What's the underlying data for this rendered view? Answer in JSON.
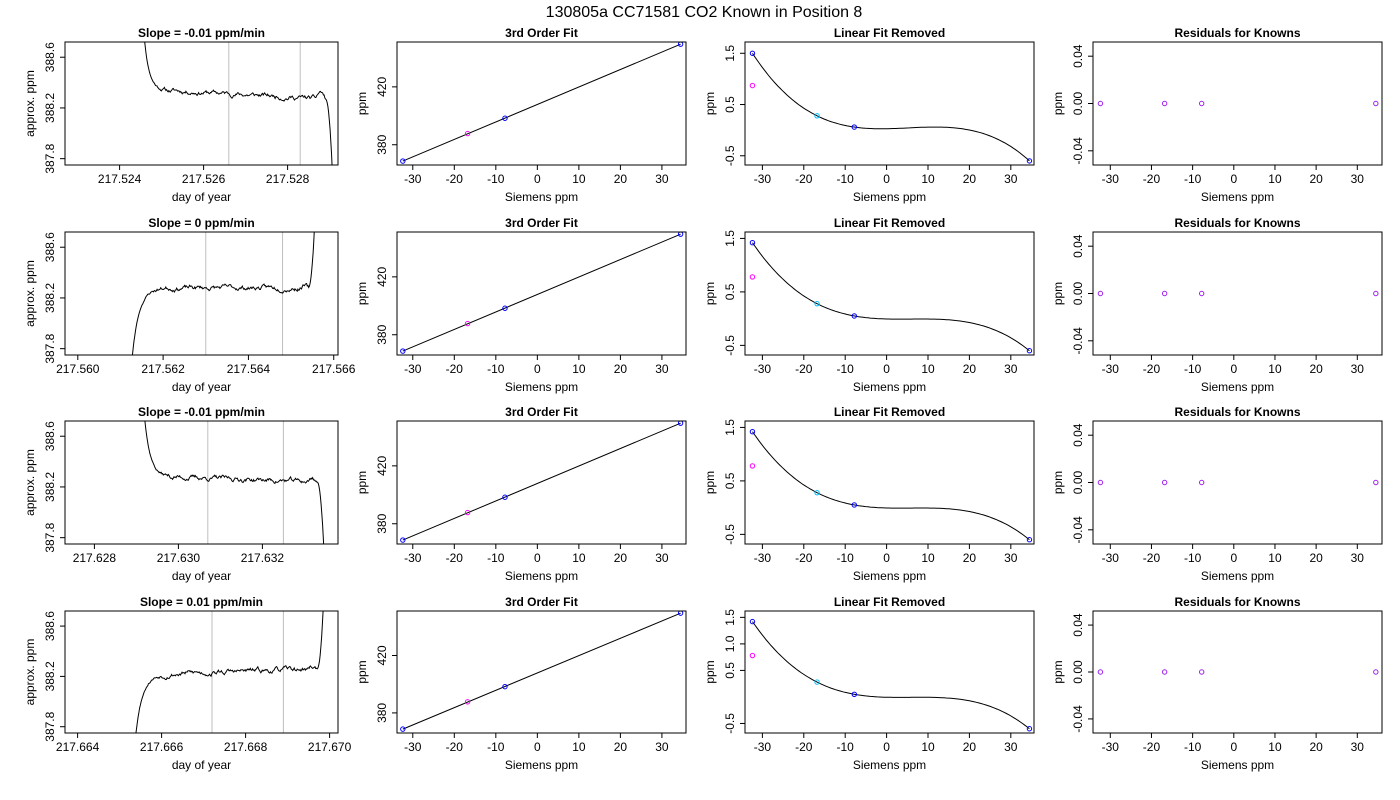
{
  "figure": {
    "title": "130805a      CC71581    CO2 Known in Position  8"
  },
  "colors": {
    "line": "#000000",
    "window_marker": "#bebebe",
    "point_blue": "#0000ff",
    "point_magenta": "#ff00ff",
    "point_cyan": "#00bfff",
    "point_purple": "#a020f0"
  },
  "chart_data": [
    {
      "type": "line",
      "row": 0,
      "col": 0,
      "title": "Slope =  -0.01  ppm/min",
      "xlabel": "day of year",
      "ylabel": "approx. ppm",
      "xlim": [
        217.5227,
        217.5292
      ],
      "ylim": [
        387.75,
        388.72
      ],
      "xticks": [
        217.524,
        217.526,
        217.528
      ],
      "xticklabels": [
        "217.524",
        "217.526",
        "217.528"
      ],
      "yticks": [
        387.8,
        388.2,
        388.6
      ],
      "yticklabels": [
        "387.8",
        "388.2",
        "388.6"
      ],
      "markers": [
        217.5266,
        217.5283
      ],
      "trace": {
        "start": 217.5245,
        "plateau_start": 217.5251,
        "plateau_end": 217.5289,
        "end": 217.5291,
        "start_level": 389.2,
        "level": 388.34,
        "plateau_drift": -0.07,
        "end_level": 387.4,
        "tail_bump": 0.05,
        "noise": 0.012,
        "seed": 11
      }
    },
    {
      "type": "scatter",
      "row": 0,
      "col": 1,
      "title": "3rd Order Fit",
      "xlabel": "Siemens ppm",
      "ylabel": "ppm",
      "xlim": [
        -33.8,
        35.8
      ],
      "ylim": [
        366.0,
        451.0
      ],
      "xticks": [
        -30,
        -20,
        -10,
        0,
        10,
        20,
        30
      ],
      "xticklabels": [
        "-30",
        "-20",
        "-10",
        "0",
        "10",
        "20",
        "30"
      ],
      "yticks": [
        380,
        420
      ],
      "yticklabels": [
        "380",
        "420"
      ],
      "fit_line": [
        [
          -32.4,
          368.7
        ],
        [
          34.5,
          449.5
        ]
      ],
      "points": [
        {
          "x": -32.4,
          "y": 368.7,
          "color": "point_blue"
        },
        {
          "x": -16.8,
          "y": 387.7,
          "color": "point_magenta"
        },
        {
          "x": -7.8,
          "y": 398.3,
          "color": "point_blue"
        },
        {
          "x": 34.5,
          "y": 449.5,
          "color": "point_blue"
        }
      ]
    },
    {
      "type": "scatter",
      "row": 0,
      "col": 2,
      "title": "Linear Fit Removed",
      "xlabel": "Siemens ppm",
      "ylabel": "ppm",
      "xlim": [
        -34.2,
        35.6
      ],
      "ylim": [
        -0.68,
        1.72
      ],
      "xticks": [
        -30,
        -20,
        -10,
        0,
        10,
        20,
        30
      ],
      "xticklabels": [
        "-30",
        "-20",
        "-10",
        "0",
        "10",
        "20",
        "30"
      ],
      "yticks": [
        -0.5,
        0.5,
        1.5
      ],
      "yticklabels": [
        "-0.5",
        "0.5",
        "1.5"
      ],
      "curve": {
        "x0": -32.4,
        "x1": 34.5,
        "coef": [
          0.0048,
          -0.00107,
          -1.1e-06,
          3.7e-06
        ]
      },
      "points": [
        {
          "x": -32.4,
          "y": 1.5,
          "color": "point_blue"
        },
        {
          "x": -32.4,
          "y": 0.87,
          "color": "point_magenta"
        },
        {
          "x": -16.8,
          "y": 0.28,
          "color": "point_cyan"
        },
        {
          "x": -7.8,
          "y": 0.06,
          "color": "point_blue"
        },
        {
          "x": 34.5,
          "y": -0.6,
          "color": "point_blue"
        }
      ]
    },
    {
      "type": "scatter",
      "row": 0,
      "col": 3,
      "title": "Residuals for Knowns",
      "xlabel": "Siemens ppm",
      "ylabel": "ppm",
      "xlim": [
        -34.2,
        36.0
      ],
      "ylim": [
        -0.052,
        0.052
      ],
      "xticks": [
        -30,
        -20,
        -10,
        0,
        10,
        20,
        30
      ],
      "xticklabels": [
        "-30",
        "-20",
        "-10",
        "0",
        "10",
        "20",
        "30"
      ],
      "yticks": [
        -0.04,
        0.0,
        0.04
      ],
      "yticklabels": [
        "-0.04",
        "0.00",
        "0.04"
      ],
      "points": [
        {
          "x": -32.4,
          "y": 0.0,
          "color": "point_purple"
        },
        {
          "x": -16.8,
          "y": 0.0,
          "color": "point_purple"
        },
        {
          "x": -7.8,
          "y": 0.0,
          "color": "point_purple"
        },
        {
          "x": 34.5,
          "y": 0.0,
          "color": "point_purple"
        }
      ]
    },
    {
      "type": "line",
      "row": 1,
      "col": 0,
      "title": "Slope =  0  ppm/min",
      "xlabel": "day of year",
      "ylabel": "approx. ppm",
      "xlim": [
        217.5597,
        217.5661
      ],
      "ylim": [
        387.75,
        388.72
      ],
      "xticks": [
        217.56,
        217.562,
        217.564,
        217.566
      ],
      "xticklabels": [
        "217.560",
        "217.562",
        "217.564",
        "217.566"
      ],
      "yticks": [
        387.8,
        388.2,
        388.6
      ],
      "yticklabels": [
        "387.8",
        "388.2",
        "388.6"
      ],
      "markers": [
        217.563,
        217.5648
      ],
      "trace": {
        "start": 217.5612,
        "plateau_start": 217.562,
        "plateau_end": 217.5654,
        "end": 217.5656,
        "start_level": 387.4,
        "level": 388.28,
        "plateau_drift": 0.0,
        "end_level": 389.2,
        "tail_bump": 0.02,
        "noise": 0.012,
        "seed": 23
      }
    },
    {
      "type": "scatter",
      "row": 1,
      "col": 1,
      "title": "3rd Order Fit",
      "xlabel": "Siemens ppm",
      "ylabel": "ppm",
      "xlim": [
        -33.8,
        35.8
      ],
      "ylim": [
        366.0,
        451.0
      ],
      "xticks": [
        -30,
        -20,
        -10,
        0,
        10,
        20,
        30
      ],
      "xticklabels": [
        "-30",
        "-20",
        "-10",
        "0",
        "10",
        "20",
        "30"
      ],
      "yticks": [
        380,
        420
      ],
      "yticklabels": [
        "380",
        "420"
      ],
      "fit_line": [
        [
          -32.4,
          368.7
        ],
        [
          34.5,
          449.5
        ]
      ],
      "points": [
        {
          "x": -32.4,
          "y": 368.7,
          "color": "point_blue"
        },
        {
          "x": -16.8,
          "y": 387.7,
          "color": "point_magenta"
        },
        {
          "x": -7.8,
          "y": 398.3,
          "color": "point_blue"
        },
        {
          "x": 34.5,
          "y": 449.5,
          "color": "point_blue"
        }
      ]
    },
    {
      "type": "scatter",
      "row": 1,
      "col": 2,
      "title": "Linear Fit Removed",
      "xlabel": "Siemens ppm",
      "ylabel": "ppm",
      "xlim": [
        -34.2,
        35.6
      ],
      "ylim": [
        -0.68,
        1.62
      ],
      "xticks": [
        -30,
        -20,
        -10,
        0,
        10,
        20,
        30
      ],
      "xticklabels": [
        "-30",
        "-20",
        "-10",
        "0",
        "10",
        "20",
        "30"
      ],
      "yticks": [
        -0.5,
        0.5,
        1.5
      ],
      "yticklabels": [
        "-0.5",
        "0.5",
        "1.5"
      ],
      "curve": {
        "x0": -32.4,
        "x1": 34.5,
        "coef": [
          0.0048,
          -0.00107,
          -1.1e-06,
          3.7e-06
        ]
      },
      "points": [
        {
          "x": -32.4,
          "y": 1.42,
          "color": "point_blue"
        },
        {
          "x": -32.4,
          "y": 0.78,
          "color": "point_magenta"
        },
        {
          "x": -16.8,
          "y": 0.28,
          "color": "point_cyan"
        },
        {
          "x": -7.8,
          "y": 0.05,
          "color": "point_blue"
        },
        {
          "x": 34.5,
          "y": -0.6,
          "color": "point_blue"
        }
      ]
    },
    {
      "type": "scatter",
      "row": 1,
      "col": 3,
      "title": "Residuals for Knowns",
      "xlabel": "Siemens ppm",
      "ylabel": "ppm",
      "xlim": [
        -34.2,
        36.0
      ],
      "ylim": [
        -0.052,
        0.052
      ],
      "xticks": [
        -30,
        -20,
        -10,
        0,
        10,
        20,
        30
      ],
      "xticklabels": [
        "-30",
        "-20",
        "-10",
        "0",
        "10",
        "20",
        "30"
      ],
      "yticks": [
        -0.04,
        0.0,
        0.04
      ],
      "yticklabels": [
        "-0.04",
        "0.00",
        "0.04"
      ],
      "points": [
        {
          "x": -32.4,
          "y": 0.0,
          "color": "point_purple"
        },
        {
          "x": -16.8,
          "y": 0.0,
          "color": "point_purple"
        },
        {
          "x": -7.8,
          "y": 0.0,
          "color": "point_purple"
        },
        {
          "x": 34.5,
          "y": 0.0,
          "color": "point_purple"
        }
      ]
    },
    {
      "type": "line",
      "row": 2,
      "col": 0,
      "title": "Slope =  -0.01  ppm/min",
      "xlabel": "day of year",
      "ylabel": "approx. ppm",
      "xlim": [
        217.6273,
        217.6338
      ],
      "ylim": [
        387.75,
        388.72
      ],
      "xticks": [
        217.628,
        217.63,
        217.632
      ],
      "xticklabels": [
        "217.628",
        "217.630",
        "217.632"
      ],
      "yticks": [
        387.8,
        388.2,
        388.6
      ],
      "yticklabels": [
        "387.8",
        "388.2",
        "388.6"
      ],
      "markers": [
        217.6307,
        217.6325
      ],
      "trace": {
        "start": 217.6291,
        "plateau_start": 217.6298,
        "plateau_end": 217.6333,
        "end": 217.6335,
        "start_level": 389.2,
        "level": 388.28,
        "plateau_drift": -0.04,
        "end_level": 387.4,
        "tail_bump": 0.03,
        "noise": 0.012,
        "seed": 37
      }
    },
    {
      "type": "scatter",
      "row": 2,
      "col": 1,
      "title": "3rd Order Fit",
      "xlabel": "Siemens ppm",
      "ylabel": "ppm",
      "xlim": [
        -33.8,
        35.8
      ],
      "ylim": [
        366.0,
        451.0
      ],
      "xticks": [
        -30,
        -20,
        -10,
        0,
        10,
        20,
        30
      ],
      "xticklabels": [
        "-30",
        "-20",
        "-10",
        "0",
        "10",
        "20",
        "30"
      ],
      "yticks": [
        380,
        420
      ],
      "yticklabels": [
        "380",
        "420"
      ],
      "fit_line": [
        [
          -32.4,
          368.7
        ],
        [
          34.5,
          449.5
        ]
      ],
      "points": [
        {
          "x": -32.4,
          "y": 368.7,
          "color": "point_blue"
        },
        {
          "x": -16.8,
          "y": 387.7,
          "color": "point_magenta"
        },
        {
          "x": -7.8,
          "y": 398.3,
          "color": "point_blue"
        },
        {
          "x": 34.5,
          "y": 449.5,
          "color": "point_blue"
        }
      ]
    },
    {
      "type": "scatter",
      "row": 2,
      "col": 2,
      "title": "Linear Fit Removed",
      "xlabel": "Siemens ppm",
      "ylabel": "ppm",
      "xlim": [
        -34.2,
        35.6
      ],
      "ylim": [
        -0.68,
        1.62
      ],
      "xticks": [
        -30,
        -20,
        -10,
        0,
        10,
        20,
        30
      ],
      "xticklabels": [
        "-30",
        "-20",
        "-10",
        "0",
        "10",
        "20",
        "30"
      ],
      "yticks": [
        -0.5,
        0.5,
        1.5
      ],
      "yticklabels": [
        "-0.5",
        "0.5",
        "1.5"
      ],
      "curve": {
        "x0": -32.4,
        "x1": 34.5,
        "coef": [
          0.0048,
          -0.00107,
          -1.1e-06,
          3.7e-06
        ]
      },
      "points": [
        {
          "x": -32.4,
          "y": 1.42,
          "color": "point_blue"
        },
        {
          "x": -32.4,
          "y": 0.78,
          "color": "point_magenta"
        },
        {
          "x": -16.8,
          "y": 0.28,
          "color": "point_cyan"
        },
        {
          "x": -7.8,
          "y": 0.05,
          "color": "point_blue"
        },
        {
          "x": 34.5,
          "y": -0.6,
          "color": "point_blue"
        }
      ]
    },
    {
      "type": "scatter",
      "row": 2,
      "col": 3,
      "title": "Residuals for Knowns",
      "xlabel": "Siemens ppm",
      "ylabel": "ppm",
      "xlim": [
        -34.2,
        36.0
      ],
      "ylim": [
        -0.052,
        0.052
      ],
      "xticks": [
        -30,
        -20,
        -10,
        0,
        10,
        20,
        30
      ],
      "xticklabels": [
        "-30",
        "-20",
        "-10",
        "0",
        "10",
        "20",
        "30"
      ],
      "yticks": [
        -0.04,
        0.0,
        0.04
      ],
      "yticklabels": [
        "-0.04",
        "0.00",
        "0.04"
      ],
      "points": [
        {
          "x": -32.4,
          "y": 0.0,
          "color": "point_purple"
        },
        {
          "x": -16.8,
          "y": 0.0,
          "color": "point_purple"
        },
        {
          "x": -7.8,
          "y": 0.0,
          "color": "point_purple"
        },
        {
          "x": 34.5,
          "y": 0.0,
          "color": "point_purple"
        }
      ]
    },
    {
      "type": "line",
      "row": 3,
      "col": 0,
      "title": "Slope =  0.01  ppm/min",
      "xlabel": "day of year",
      "ylabel": "approx. ppm",
      "xlim": [
        217.6637,
        217.6702
      ],
      "ylim": [
        387.75,
        388.72
      ],
      "xticks": [
        217.664,
        217.666,
        217.668,
        217.67
      ],
      "xticklabels": [
        "217.664",
        "217.666",
        "217.668",
        "217.670"
      ],
      "yticks": [
        387.8,
        388.2,
        388.6
      ],
      "yticklabels": [
        "387.8",
        "388.2",
        "388.6"
      ],
      "markers": [
        217.6672,
        217.6689
      ],
      "trace": {
        "start": 217.6653,
        "plateau_start": 217.6661,
        "plateau_end": 217.6697,
        "end": 217.6699,
        "start_level": 387.4,
        "level": 388.22,
        "plateau_drift": 0.04,
        "end_level": 389.2,
        "tail_bump": 0.02,
        "noise": 0.013,
        "seed": 53
      }
    },
    {
      "type": "scatter",
      "row": 3,
      "col": 1,
      "title": "3rd Order Fit",
      "xlabel": "Siemens ppm",
      "ylabel": "ppm",
      "xlim": [
        -33.8,
        35.8
      ],
      "ylim": [
        366.0,
        451.0
      ],
      "xticks": [
        -30,
        -20,
        -10,
        0,
        10,
        20,
        30
      ],
      "xticklabels": [
        "-30",
        "-20",
        "-10",
        "0",
        "10",
        "20",
        "30"
      ],
      "yticks": [
        380,
        420
      ],
      "yticklabels": [
        "380",
        "420"
      ],
      "fit_line": [
        [
          -32.4,
          368.7
        ],
        [
          34.5,
          449.5
        ]
      ],
      "points": [
        {
          "x": -32.4,
          "y": 368.7,
          "color": "point_blue"
        },
        {
          "x": -16.8,
          "y": 387.7,
          "color": "point_magenta"
        },
        {
          "x": -7.8,
          "y": 398.3,
          "color": "point_blue"
        },
        {
          "x": 34.5,
          "y": 449.5,
          "color": "point_blue"
        }
      ]
    },
    {
      "type": "scatter",
      "row": 3,
      "col": 2,
      "title": "Linear Fit Removed",
      "xlabel": "Siemens ppm",
      "ylabel": "ppm",
      "xlim": [
        -34.2,
        35.6
      ],
      "ylim": [
        -0.68,
        1.62
      ],
      "xticks": [
        -30,
        -20,
        -10,
        0,
        10,
        20,
        30
      ],
      "xticklabels": [
        "-30",
        "-20",
        "-10",
        "0",
        "10",
        "20",
        "30"
      ],
      "yticks": [
        -0.5,
        0.5,
        1.0,
        1.5
      ],
      "yticklabels": [
        "-0.5",
        "0.5",
        "1.0",
        "1.5"
      ],
      "curve": {
        "x0": -32.4,
        "x1": 34.5,
        "coef": [
          0.0048,
          -0.00107,
          -1.1e-06,
          3.7e-06
        ]
      },
      "points": [
        {
          "x": -32.4,
          "y": 1.42,
          "color": "point_blue"
        },
        {
          "x": -32.4,
          "y": 0.78,
          "color": "point_magenta"
        },
        {
          "x": -16.8,
          "y": 0.28,
          "color": "point_cyan"
        },
        {
          "x": -7.8,
          "y": 0.05,
          "color": "point_blue"
        },
        {
          "x": 34.5,
          "y": -0.6,
          "color": "point_blue"
        }
      ]
    },
    {
      "type": "scatter",
      "row": 3,
      "col": 3,
      "title": "Residuals for Knowns",
      "xlabel": "Siemens ppm",
      "ylabel": "ppm",
      "xlim": [
        -34.2,
        36.0
      ],
      "ylim": [
        -0.052,
        0.052
      ],
      "xticks": [
        -30,
        -20,
        -10,
        0,
        10,
        20,
        30
      ],
      "xticklabels": [
        "-30",
        "-20",
        "-10",
        "0",
        "10",
        "20",
        "30"
      ],
      "yticks": [
        -0.04,
        0.0,
        0.04
      ],
      "yticklabels": [
        "-0.04",
        "0.00",
        "0.04"
      ],
      "points": [
        {
          "x": -32.4,
          "y": 0.0,
          "color": "point_purple"
        },
        {
          "x": -16.8,
          "y": 0.0,
          "color": "point_purple"
        },
        {
          "x": -7.8,
          "y": 0.0,
          "color": "point_purple"
        },
        {
          "x": 34.5,
          "y": 0.0,
          "color": "point_purple"
        }
      ]
    }
  ]
}
